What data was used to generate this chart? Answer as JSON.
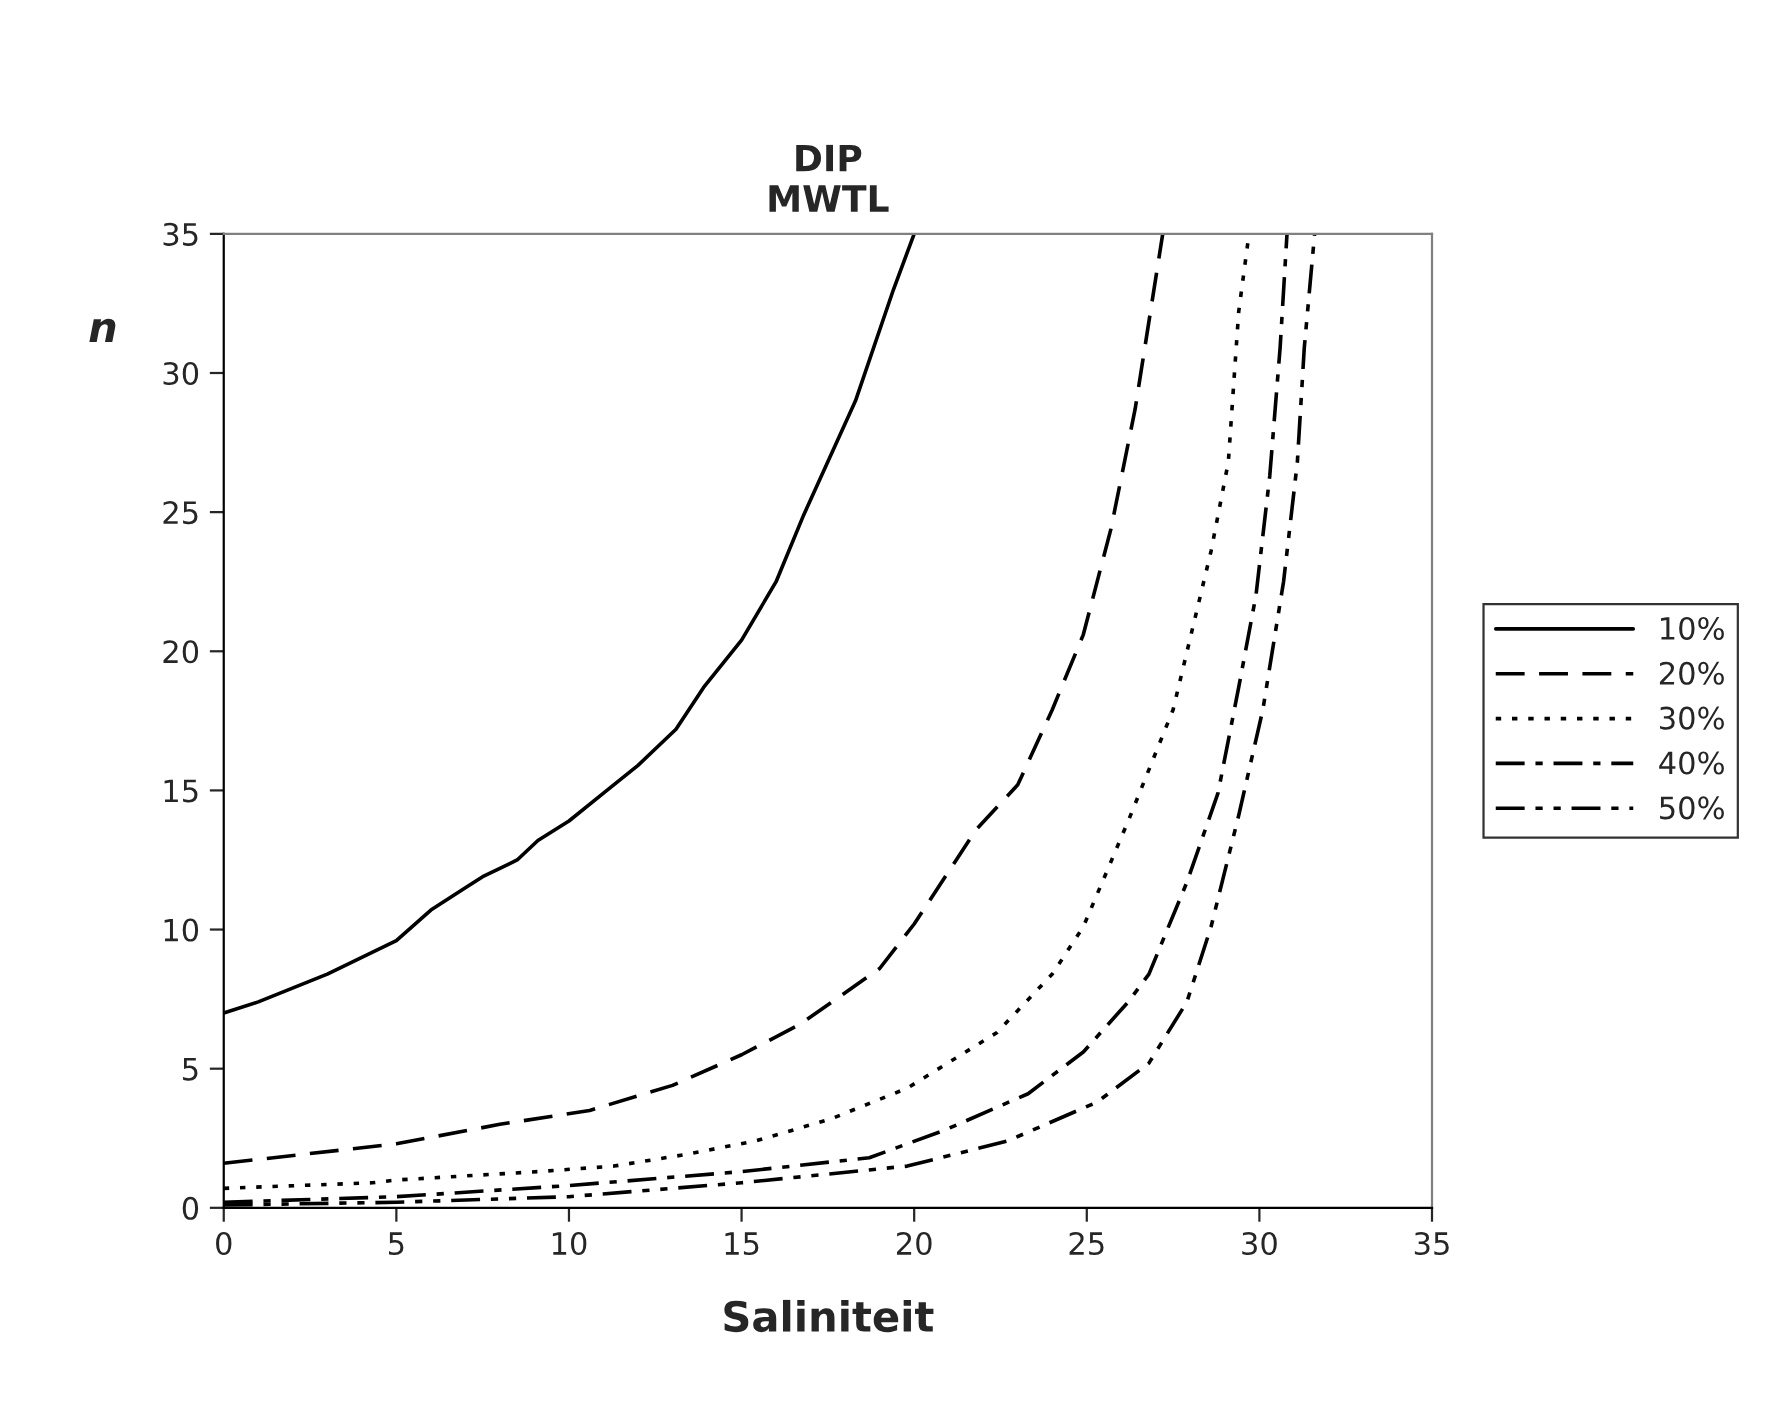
{
  "chart_data": {
    "type": "line",
    "title": "DIP\nMWTL",
    "xlabel": "Saliniteit",
    "ylabel": "n",
    "xlim": [
      0,
      35
    ],
    "xticks": [
      0,
      5,
      10,
      15,
      20,
      25,
      30,
      35
    ],
    "ylim": [
      0,
      35
    ],
    "yticks": [
      0,
      5,
      10,
      15,
      20,
      25,
      30,
      35
    ],
    "grid": false,
    "legend": "right",
    "marker": "none",
    "series": [
      {
        "name": "10%",
        "color": "#000000",
        "line_style": "solid",
        "x": [
          0,
          1,
          3,
          5,
          6,
          7,
          7.5,
          8,
          8.5,
          9.1,
          10,
          11,
          12,
          13.1,
          13.9,
          15,
          16,
          16.8,
          18.3,
          19.4,
          20
        ],
        "values": [
          7.0,
          7.4,
          8.4,
          9.6,
          10.7,
          11.5,
          11.9,
          12.2,
          12.5,
          13.2,
          13.9,
          14.9,
          15.9,
          17.2,
          18.7,
          20.4,
          22.5,
          24.9,
          29.0,
          33.0,
          35
        ]
      },
      {
        "name": "20%",
        "color": "#000000",
        "line_style": "dashed",
        "x": [
          0,
          5,
          8,
          10.6,
          13,
          15,
          16.7,
          19,
          20,
          21.8,
          23,
          24,
          24.9,
          25.7,
          26.4,
          27.2
        ],
        "values": [
          1.6,
          2.3,
          3.0,
          3.5,
          4.4,
          5.5,
          6.6,
          8.6,
          10.2,
          13.6,
          15.2,
          17.9,
          20.6,
          24.4,
          28.7,
          35
        ]
      },
      {
        "name": "30%",
        "color": "#000000",
        "line_style": "dotted",
        "x": [
          0,
          4.3,
          5,
          9.1,
          11.3,
          13.3,
          15.4,
          17.6,
          19.8,
          22.4,
          24,
          24.9,
          26.2,
          27.5,
          28.6,
          29.1,
          29.4,
          29.7
        ],
        "values": [
          0.7,
          0.9,
          1.0,
          1.3,
          1.5,
          1.9,
          2.4,
          3.2,
          4.3,
          6.3,
          8.4,
          10.1,
          13.9,
          17.9,
          23.6,
          26.8,
          32.2,
          35
        ]
      },
      {
        "name": "40%",
        "color": "#000000",
        "line_style": "dashdot",
        "x": [
          0,
          5,
          10,
          15,
          18.7,
          20.9,
          23.3,
          24.9,
          26.2,
          26.8,
          27.9,
          28.8,
          29.4,
          29.9,
          30.3,
          30.6,
          30.8
        ],
        "values": [
          0.2,
          0.4,
          0.8,
          1.3,
          1.8,
          2.8,
          4.1,
          5.6,
          7.4,
          8.4,
          11.7,
          14.9,
          18.7,
          22.0,
          26.3,
          30.9,
          35
        ]
      },
      {
        "name": "50%",
        "color": "#000000",
        "line_style": "dashdotdot",
        "x": [
          0,
          5,
          10,
          15,
          19.8,
          22.7,
          25.3,
          26.8,
          27.9,
          28.6,
          29.4,
          30.1,
          30.7,
          31.1,
          31.3,
          31.6
        ],
        "values": [
          0.1,
          0.2,
          0.4,
          0.9,
          1.5,
          2.4,
          3.8,
          5.2,
          7.4,
          10.1,
          14.1,
          17.9,
          22.5,
          26.8,
          30.9,
          35
        ]
      }
    ]
  }
}
